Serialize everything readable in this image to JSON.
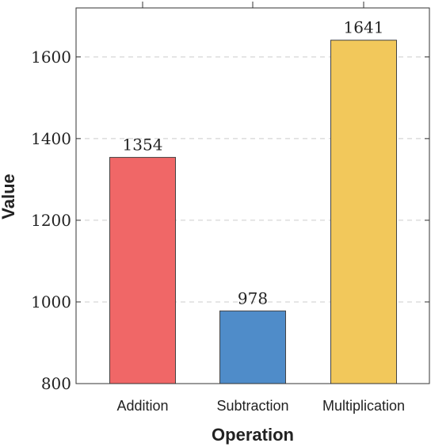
{
  "chart_data": {
    "type": "bar",
    "title": "",
    "xlabel": "Operation",
    "ylabel": "Value",
    "categories": [
      "Addition",
      "Subtraction",
      "Multiplication"
    ],
    "values": [
      1354,
      978,
      1641
    ],
    "colors": [
      "#f06767",
      "#4f8cc9",
      "#f2c85b"
    ],
    "ylim": [
      800,
      1720
    ],
    "yticks": [
      800,
      1000,
      1200,
      1400,
      1600
    ],
    "grid": "horizontal dashed",
    "legend": "none",
    "data_labels": true
  }
}
